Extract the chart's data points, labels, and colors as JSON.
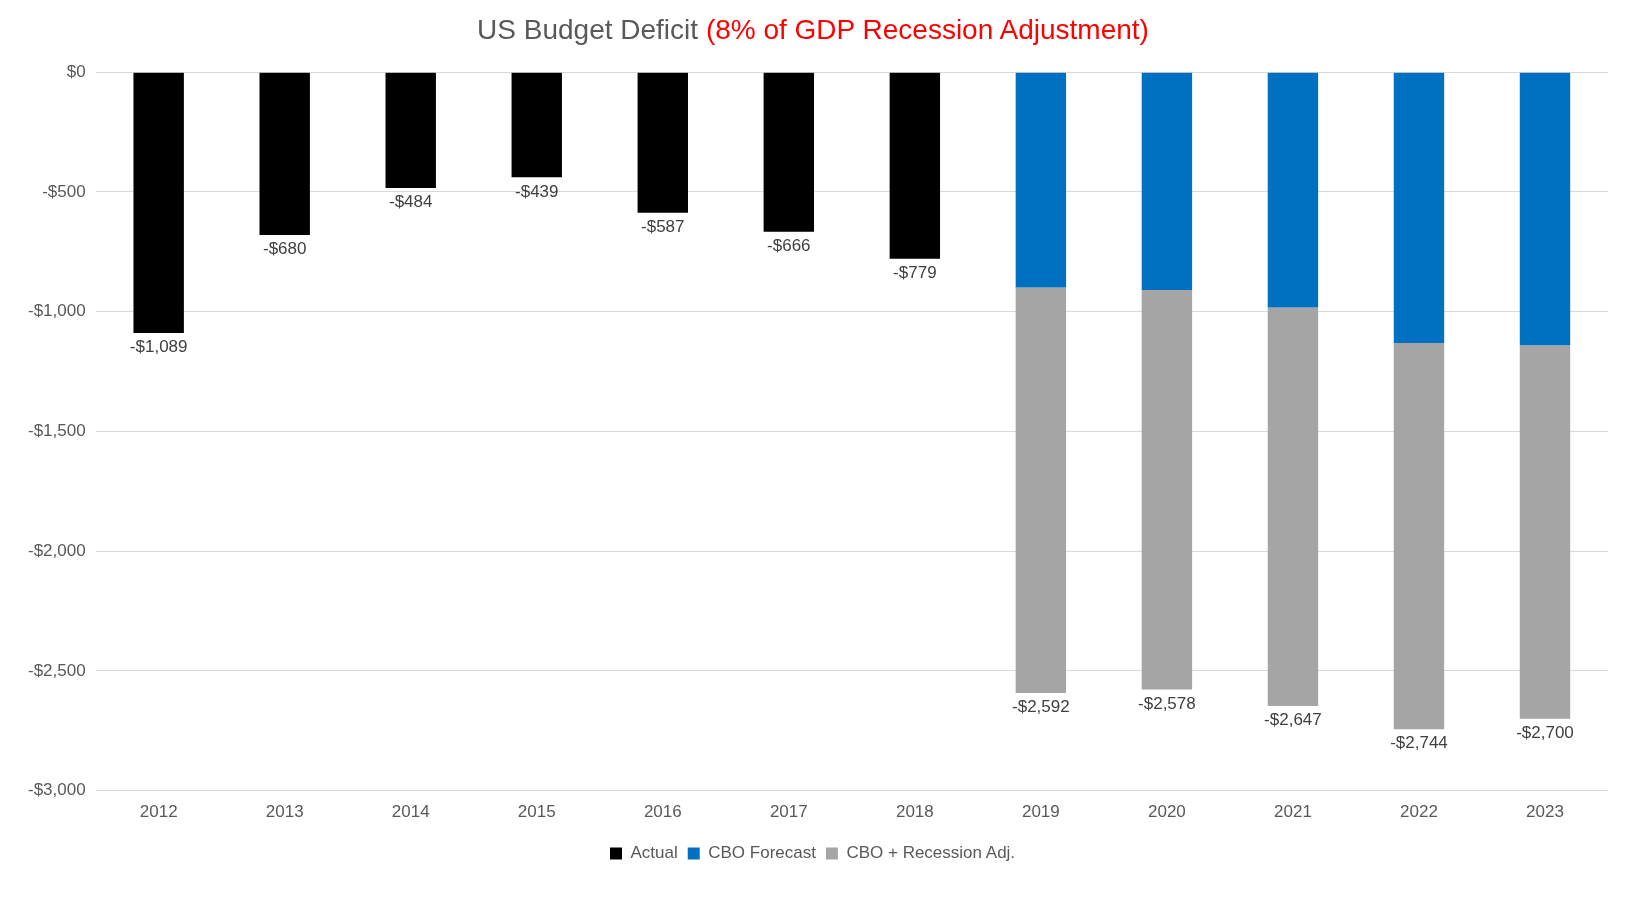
{
  "chart_data": {
    "type": "bar",
    "title": "US Budget Deficit",
    "subtitle": "(8% of GDP Recession Adjustment)",
    "categories": [
      "2012",
      "2013",
      "2014",
      "2015",
      "2016",
      "2017",
      "2018",
      "2019",
      "2020",
      "2021",
      "2022",
      "2023"
    ],
    "stacked": true,
    "series": [
      {
        "name": "Actual",
        "color": "#000000",
        "values": [
          -1089,
          -680,
          -484,
          -439,
          -587,
          -666,
          -779,
          null,
          null,
          null,
          null,
          null
        ],
        "value_labels": [
          "-$1,089",
          "-$680",
          "-$484",
          "-$439",
          "-$587",
          "-$666",
          "-$779",
          null,
          null,
          null,
          null,
          null
        ]
      },
      {
        "name": "CBO Forecast",
        "color": "#0070c0",
        "values": [
          null,
          null,
          null,
          null,
          null,
          null,
          null,
          -899,
          -909,
          -983,
          -1131,
          -1140
        ]
      },
      {
        "name": "CBO + Recession Adj.",
        "color": "#a5a5a5",
        "values": [
          null,
          null,
          null,
          null,
          null,
          null,
          null,
          -1693,
          -1669,
          -1664,
          -1613,
          -1560
        ]
      }
    ],
    "totals": [
      null,
      null,
      null,
      null,
      null,
      null,
      null,
      "-$2,592",
      "-$2,578",
      "-$2,647",
      "-$2,744",
      "-$2,700"
    ],
    "ylim": [
      -3000,
      0
    ],
    "yticks": [
      {
        "value": 0,
        "label": "$0"
      },
      {
        "value": -500,
        "label": "-$500"
      },
      {
        "value": -1000,
        "label": "-$1,000"
      },
      {
        "value": -1500,
        "label": "-$1,500"
      },
      {
        "value": -2000,
        "label": "-$2,000"
      },
      {
        "value": -2500,
        "label": "-$2,500"
      },
      {
        "value": -3000,
        "label": "-$3,000"
      }
    ],
    "grid": "y",
    "legend": "bottom"
  }
}
